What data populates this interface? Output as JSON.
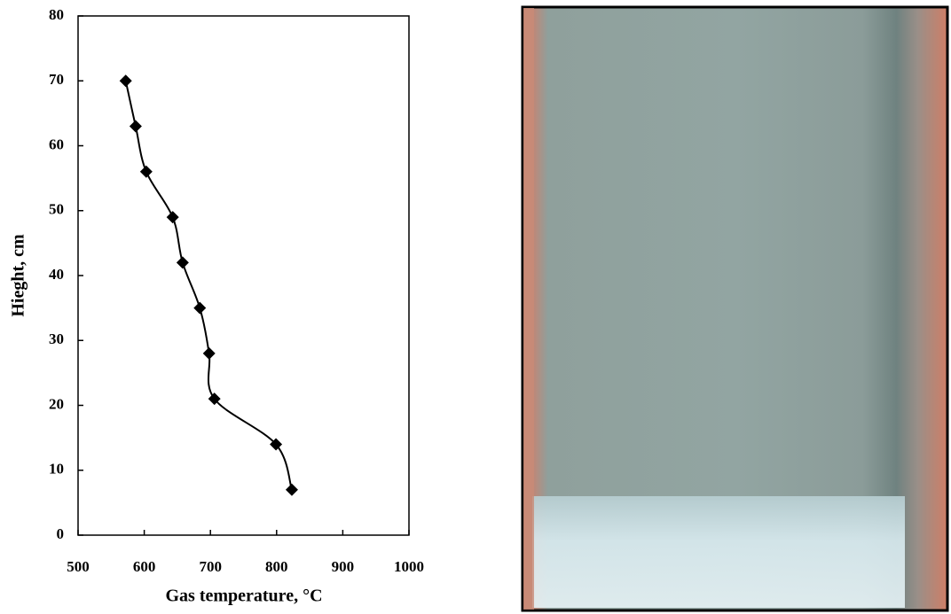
{
  "chart_data": {
    "type": "line",
    "x_label": "Gas temperature, °C",
    "y_label": "Hieght, cm",
    "x": [
      572,
      587,
      603,
      643,
      658,
      684,
      698,
      706,
      799,
      823
    ],
    "series": [
      {
        "color": "#000000",
        "values": [
          70,
          63,
          56,
          49,
          42,
          35,
          28,
          21,
          14,
          7
        ]
      }
    ],
    "xlim": [
      500,
      1000
    ],
    "xticks": [
      500,
      600,
      700,
      800,
      900,
      1000
    ],
    "ylim": [
      0,
      80
    ],
    "yticks": [
      0,
      10,
      20,
      30,
      40,
      50,
      60,
      70,
      80
    ],
    "marker": "diamond",
    "smooth": true,
    "grid": false
  }
}
